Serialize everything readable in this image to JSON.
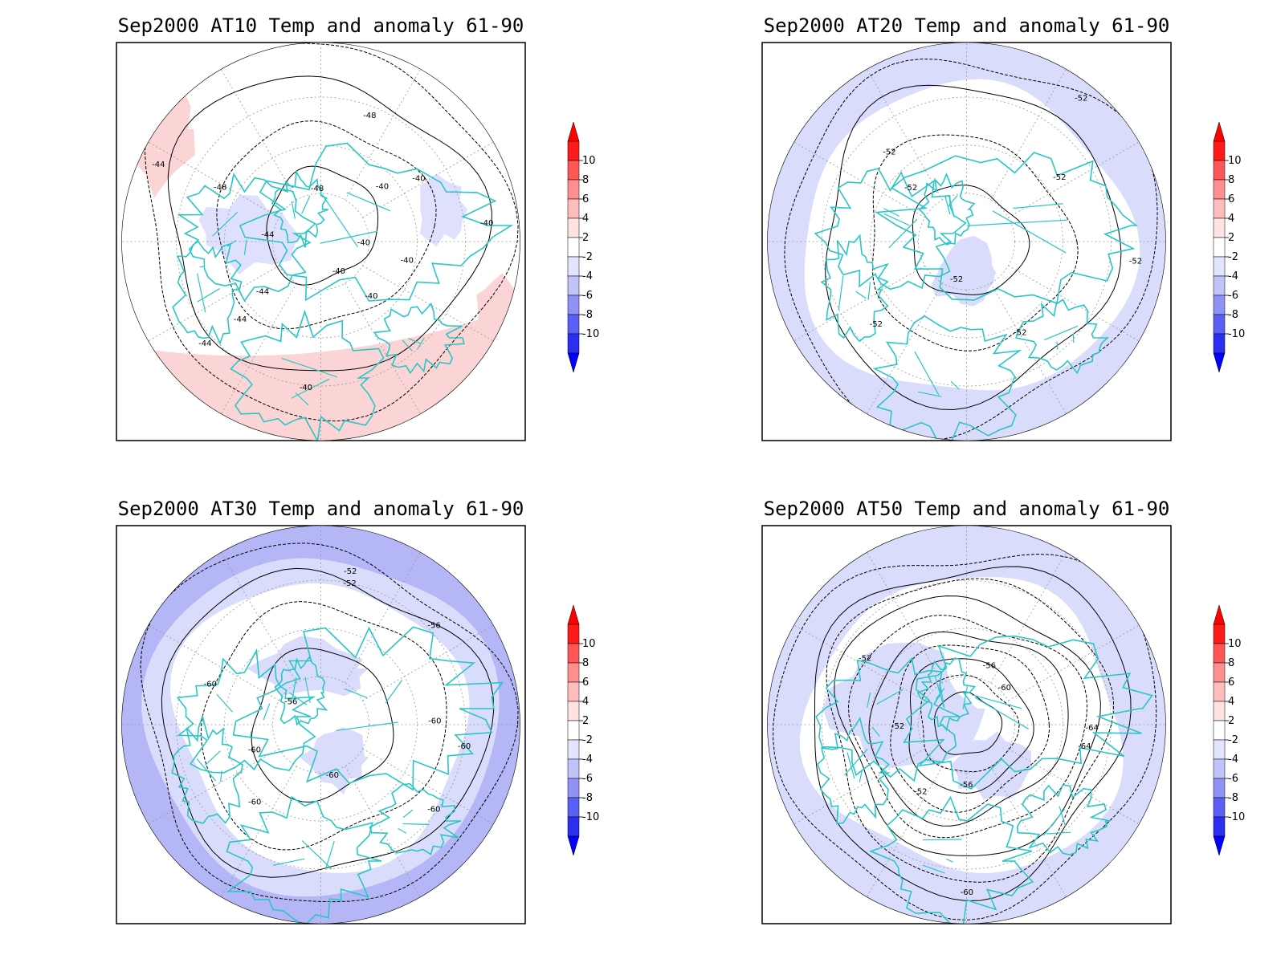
{
  "panels": [
    {
      "id": "at10",
      "title": "Sep2000 AT10 Temp and anomaly 61-90",
      "contour_labels": [
        "-40",
        "-40",
        "-40",
        "-40",
        "-44",
        "-44",
        "-44",
        "-44",
        "-44",
        "-48",
        "-48",
        "-48",
        "-40",
        "-40",
        "-40",
        "-40"
      ],
      "anomaly_tint": "#fbd5d5"
    },
    {
      "id": "at20",
      "title": "Sep2000 AT20 Temp and anomaly 61-90",
      "contour_labels": [
        "-52",
        "-52",
        "-52",
        "-52",
        "-52",
        "-52",
        "-52",
        "-52"
      ],
      "anomaly_tint": "#dadcfb"
    },
    {
      "id": "at30",
      "title": "Sep2000 AT30 Temp and anomaly 61-90",
      "contour_labels": [
        "-60",
        "-60",
        "-60",
        "-60",
        "-60",
        "-60",
        "-56",
        "-52",
        "-52",
        "-56",
        "-60"
      ],
      "anomaly_tint": "#b4b6f6"
    },
    {
      "id": "at50",
      "title": "Sep2000 AT50 Temp and anomaly 61-90",
      "contour_labels": [
        "-64",
        "-60",
        "-56",
        "-52",
        "-52",
        "-52",
        "-56",
        "-60",
        "-64"
      ],
      "anomaly_tint": "#dadcfb"
    }
  ],
  "colorbar": {
    "labels": [
      "10",
      "8",
      "6",
      "4",
      "2",
      "-2",
      "-4",
      "-6",
      "-8",
      "-10"
    ],
    "colors": [
      "#ff1a1a",
      "#ff5555",
      "#ff8f8f",
      "#ffbcbc",
      "#ffe3e3",
      "#ffffff",
      "#e3e4fd",
      "#c1c3fb",
      "#8e92f7",
      "#5a5ff5",
      "#2a2ff2"
    ],
    "over_color": "#ff0000",
    "under_color": "#0000ff"
  },
  "colors": {
    "coastline": "#2ac6c6",
    "contour": "#000000",
    "grid": "#999999"
  }
}
